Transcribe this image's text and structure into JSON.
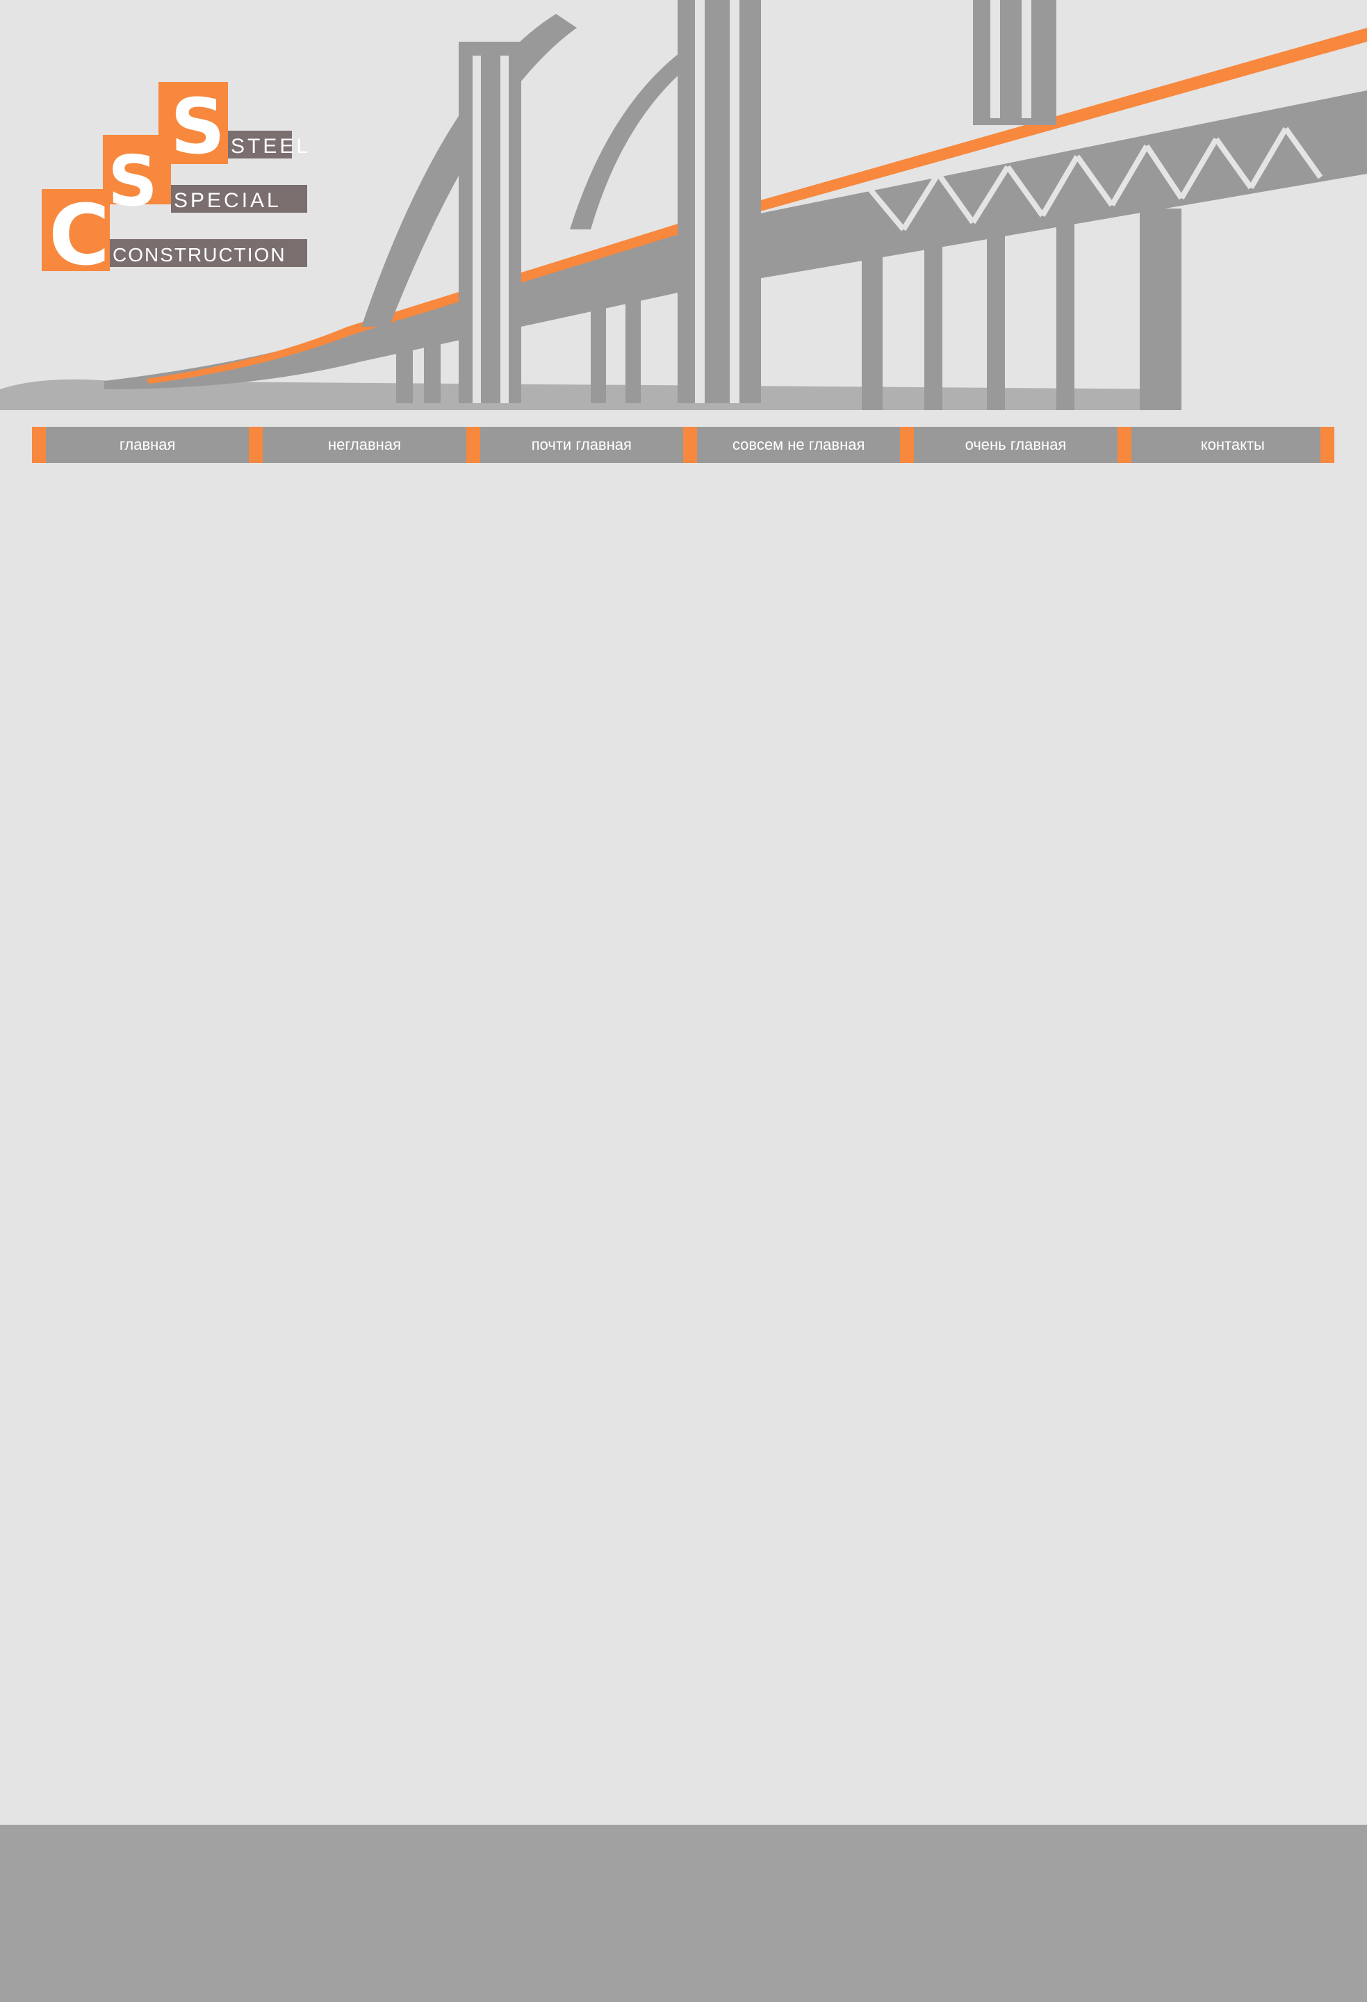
{
  "logo": {
    "letters": [
      "C",
      "S",
      "S"
    ],
    "words": [
      "STEEL",
      "SPECIAL",
      "CONSTRUCTION"
    ]
  },
  "colors": {
    "accent": "#f7883e",
    "nav_background": "#999999",
    "page_background": "#e4e4e4",
    "footer_background": "#a1a1a1",
    "illustration_gray": "#999999"
  },
  "nav": {
    "items": [
      {
        "label": "главная"
      },
      {
        "label": "неглавная"
      },
      {
        "label": "почти главная"
      },
      {
        "label": "совсем не главная"
      },
      {
        "label": "очень главная"
      },
      {
        "label": "контакты"
      }
    ]
  }
}
